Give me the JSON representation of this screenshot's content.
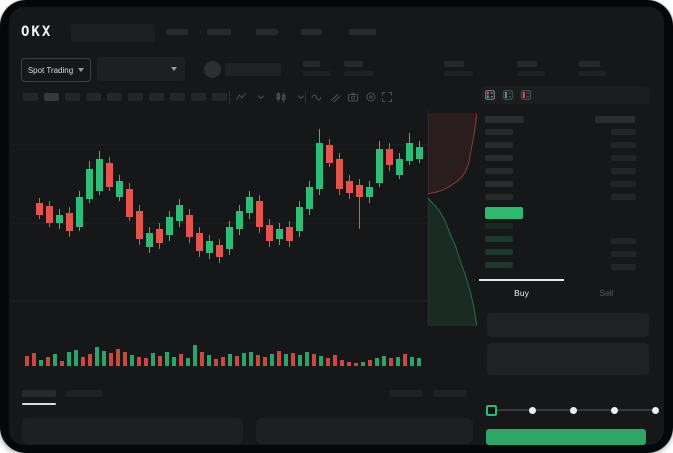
{
  "app": {
    "brand": "OKX"
  },
  "header": {
    "market_selector_label": "Spot Trading",
    "market_selector_chevron_icon": "chevron-down-icon",
    "pair_selector_chevron_icon": "chevron-down-icon",
    "nav_placeholder_count": 5,
    "stat_placeholder_pair_count": 5
  },
  "toolbar": {
    "timeframe_placeholder_count": 10,
    "active_timeframe_index": 1,
    "icons": [
      "line-tool-icon",
      "chevron-down-icon",
      "indicator-icon",
      "chevron-down-icon",
      "divider",
      "wave-icon",
      "compare-icon",
      "camera-icon",
      "target-icon",
      "fullscreen-icon"
    ]
  },
  "orderbook": {
    "view_toggle_icons": [
      "combined-book-icon",
      "bids-only-icon",
      "asks-only-icon"
    ],
    "active_view_toggle_index": 0,
    "ask_row_count": 6,
    "bid_row_count": 4,
    "last_price_highlight_color": "#2eb971"
  },
  "trade_panel": {
    "tabs": [
      {
        "label": "Buy",
        "active": true
      },
      {
        "label": "Sell",
        "active": false
      }
    ],
    "amount_slider_stops": 5,
    "amount_slider_value_index": 0,
    "buy_button_color": "#2da765"
  },
  "colors": {
    "up_green": "#2ebd77",
    "down_red": "#e4544b",
    "accent_green": "#2eb971",
    "screen_background": "#161719",
    "placeholder": "#28292b"
  },
  "chart_data": {
    "type": "candlestick+volume+depth",
    "title": "",
    "axis_labels_visible": false,
    "gridlines": true,
    "price_scale_note": "no visible axis labels; values estimated in relative units",
    "candles_ohlc": [
      [
        148,
        153,
        132,
        136
      ],
      [
        145,
        150,
        124,
        128
      ],
      [
        128,
        142,
        122,
        136
      ],
      [
        138,
        144,
        114,
        120
      ],
      [
        124,
        160,
        120,
        154
      ],
      [
        152,
        190,
        148,
        182
      ],
      [
        160,
        200,
        156,
        192
      ],
      [
        188,
        194,
        160,
        164
      ],
      [
        154,
        176,
        150,
        170
      ],
      [
        162,
        168,
        130,
        134
      ],
      [
        140,
        146,
        106,
        112
      ],
      [
        104,
        124,
        98,
        118
      ],
      [
        122,
        128,
        102,
        108
      ],
      [
        116,
        140,
        110,
        134
      ],
      [
        130,
        152,
        124,
        146
      ],
      [
        136,
        142,
        108,
        114
      ],
      [
        118,
        124,
        94,
        100
      ],
      [
        98,
        116,
        92,
        110
      ],
      [
        106,
        112,
        88,
        94
      ],
      [
        102,
        130,
        96,
        124
      ],
      [
        122,
        146,
        116,
        140
      ],
      [
        138,
        160,
        132,
        154
      ],
      [
        150,
        156,
        118,
        124
      ],
      [
        126,
        132,
        104,
        110
      ],
      [
        112,
        128,
        106,
        122
      ],
      [
        124,
        130,
        104,
        110
      ],
      [
        120,
        150,
        114,
        144
      ],
      [
        142,
        170,
        136,
        164
      ],
      [
        162,
        222,
        156,
        208
      ],
      [
        206,
        212,
        184,
        188
      ],
      [
        192,
        198,
        156,
        162
      ],
      [
        170,
        176,
        152,
        158
      ],
      [
        166,
        172,
        122,
        154
      ],
      [
        154,
        170,
        148,
        164
      ],
      [
        168,
        210,
        164,
        202
      ],
      [
        202,
        208,
        180,
        186
      ],
      [
        176,
        198,
        172,
        192
      ],
      [
        190,
        218,
        186,
        208
      ],
      [
        192,
        210,
        188,
        204
      ]
    ],
    "volume": {
      "values": [
        10,
        13,
        6,
        9,
        12,
        5,
        14,
        16,
        9,
        12,
        19,
        15,
        13,
        17,
        14,
        11,
        9,
        8,
        13,
        10,
        14,
        9,
        12,
        8,
        21,
        14,
        11,
        7,
        9,
        12,
        10,
        13,
        14,
        11,
        9,
        12,
        15,
        12,
        13,
        11,
        14,
        12,
        10,
        8,
        11,
        6,
        4,
        3,
        4,
        6,
        8,
        10,
        8,
        9,
        12,
        9,
        8
      ],
      "colors": [
        "r",
        "r",
        "g",
        "r",
        "g",
        "r",
        "g",
        "g",
        "r",
        "r",
        "g",
        "g",
        "r",
        "r",
        "r",
        "g",
        "r",
        "r",
        "g",
        "r",
        "g",
        "g",
        "r",
        "g",
        "g",
        "r",
        "g",
        "r",
        "r",
        "g",
        "r",
        "g",
        "g",
        "r",
        "r",
        "g",
        "r",
        "g",
        "r",
        "g",
        "g",
        "r",
        "g",
        "r",
        "r",
        "r",
        "r",
        "r",
        "g",
        "r",
        "g",
        "g",
        "r",
        "g",
        "r",
        "g",
        "g"
      ]
    },
    "depth_chart": {
      "asks_curve": [
        [
          1,
          0.02
        ],
        [
          0.97,
          0.07
        ],
        [
          0.93,
          0.13
        ],
        [
          0.88,
          0.19
        ],
        [
          0.83,
          0.25
        ],
        [
          0.76,
          0.29
        ],
        [
          0.67,
          0.32
        ],
        [
          0.55,
          0.34
        ],
        [
          0.42,
          0.36
        ],
        [
          0.28,
          0.375
        ],
        [
          0.14,
          0.385
        ],
        [
          0,
          0.39
        ]
      ],
      "bids_curve": [
        [
          0,
          0.41
        ],
        [
          0.1,
          0.435
        ],
        [
          0.22,
          0.465
        ],
        [
          0.34,
          0.51
        ],
        [
          0.45,
          0.575
        ],
        [
          0.56,
          0.63
        ],
        [
          0.66,
          0.7
        ],
        [
          0.77,
          0.77
        ],
        [
          0.87,
          0.845
        ],
        [
          0.94,
          0.92
        ],
        [
          1,
          1
        ]
      ]
    },
    "colors": {
      "up": "#2ebd77",
      "down": "#e4544b"
    }
  }
}
